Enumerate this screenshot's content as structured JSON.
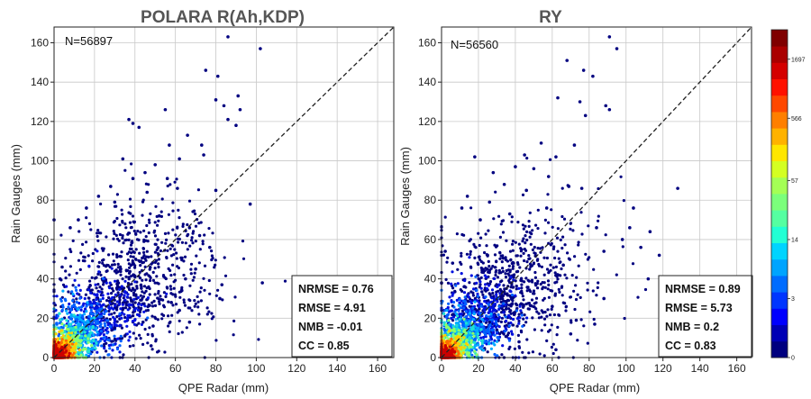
{
  "chart_data": [
    {
      "type": "scatter",
      "title": "POLARA R(Ah,KDP)",
      "xlabel": "QPE Radar (mm)",
      "ylabel": "Rain Gauges (mm)",
      "xlim": [
        0,
        168
      ],
      "ylim": [
        0,
        168
      ],
      "xticks": [
        0,
        20,
        40,
        60,
        80,
        100,
        120,
        140,
        160
      ],
      "yticks": [
        0,
        20,
        40,
        60,
        80,
        100,
        120,
        140,
        160
      ],
      "grid": true,
      "n_label": "N=56897",
      "reference_line": "1:1 dashed",
      "stats": [
        "NRMSE = 0.76",
        "RMSE = 4.91",
        "NMB = -0.01",
        "CC = 0.85"
      ],
      "outliers": [
        [
          86,
          163
        ],
        [
          102,
          157
        ],
        [
          75,
          146
        ],
        [
          81,
          143
        ],
        [
          37,
          121
        ],
        [
          39,
          119
        ],
        [
          55,
          126
        ],
        [
          42,
          117
        ],
        [
          80,
          131
        ],
        [
          84,
          128
        ],
        [
          91,
          133
        ],
        [
          92,
          126
        ],
        [
          86,
          121
        ],
        [
          90,
          118
        ],
        [
          97,
          78
        ],
        [
          103,
          38
        ],
        [
          83,
          37
        ],
        [
          82,
          30
        ],
        [
          70,
          45
        ],
        [
          65,
          40
        ],
        [
          57,
          108
        ],
        [
          62,
          101
        ],
        [
          74,
          103
        ],
        [
          73,
          108
        ],
        [
          66,
          113
        ],
        [
          50,
          98
        ],
        [
          45,
          94
        ],
        [
          39,
          91
        ],
        [
          34,
          101
        ],
        [
          28,
          87
        ],
        [
          22,
          82
        ],
        [
          16,
          76
        ],
        [
          12,
          70
        ],
        [
          0,
          70
        ],
        [
          8,
          66
        ],
        [
          30,
          79
        ],
        [
          58,
          28
        ],
        [
          67,
          18
        ],
        [
          62,
          24
        ],
        [
          49,
          16
        ],
        [
          44,
          18
        ],
        [
          48,
          6
        ],
        [
          35,
          11
        ],
        [
          30,
          15
        ],
        [
          4,
          46
        ],
        [
          3,
          40
        ],
        [
          80,
          85
        ],
        [
          52,
          72
        ],
        [
          46,
          84
        ],
        [
          56,
          91
        ],
        [
          61,
          86
        ],
        [
          67,
          66
        ],
        [
          72,
          62
        ],
        [
          77,
          56
        ]
      ]
    },
    {
      "type": "scatter",
      "title": "RY",
      "xlabel": "QPE Radar (mm)",
      "ylabel": "Rain Gauges (mm)",
      "xlim": [
        0,
        168
      ],
      "ylim": [
        0,
        168
      ],
      "xticks": [
        0,
        20,
        40,
        60,
        80,
        100,
        120,
        140,
        160
      ],
      "yticks": [
        0,
        20,
        40,
        60,
        80,
        100,
        120,
        140,
        160
      ],
      "grid": true,
      "n_label": "N=56560",
      "reference_line": "1:1 dashed",
      "stats": [
        "NRMSE = 0.89",
        "RMSE = 5.73",
        "NMB = 0.2",
        "CC = 0.83"
      ],
      "outliers": [
        [
          91,
          163
        ],
        [
          95,
          157
        ],
        [
          77,
          146
        ],
        [
          82,
          143
        ],
        [
          68,
          151
        ],
        [
          63,
          132
        ],
        [
          75,
          130
        ],
        [
          89,
          128
        ],
        [
          91,
          126
        ],
        [
          78,
          123
        ],
        [
          18,
          102
        ],
        [
          28,
          94
        ],
        [
          40,
          97
        ],
        [
          34,
          88
        ],
        [
          50,
          96
        ],
        [
          58,
          92
        ],
        [
          69,
          87
        ],
        [
          76,
          86
        ],
        [
          128,
          86
        ],
        [
          113,
          64
        ],
        [
          118,
          52
        ],
        [
          112,
          40
        ],
        [
          102,
          66
        ],
        [
          98,
          60
        ],
        [
          88,
          54
        ],
        [
          84,
          66
        ],
        [
          66,
          47
        ],
        [
          83,
          17
        ],
        [
          73,
          19
        ],
        [
          60,
          26
        ],
        [
          55,
          23
        ],
        [
          62,
          4
        ],
        [
          42,
          8
        ],
        [
          30,
          14
        ],
        [
          26,
          18
        ],
        [
          0,
          38
        ],
        [
          2,
          54
        ],
        [
          6,
          48
        ],
        [
          11,
          76
        ],
        [
          14,
          82
        ],
        [
          21,
          70
        ],
        [
          26,
          79
        ],
        [
          45,
          103
        ],
        [
          54,
          109
        ],
        [
          57,
          76
        ],
        [
          62,
          102
        ],
        [
          72,
          108
        ],
        [
          46,
          85
        ],
        [
          37,
          73
        ],
        [
          104,
          76
        ],
        [
          108,
          56
        ],
        [
          70,
          12
        ],
        [
          88,
          30
        ]
      ]
    }
  ],
  "colorbar": {
    "label_ticks": [
      "0",
      "3",
      "14",
      "57",
      "566",
      "1697"
    ],
    "colors": [
      "#00007f",
      "#0000b5",
      "#0000ff",
      "#0035ff",
      "#006cff",
      "#00a4ff",
      "#00d4ff",
      "#22ffd4",
      "#55ffa1",
      "#7bff7b",
      "#a4ff55",
      "#d4ff22",
      "#ffe600",
      "#ffb200",
      "#ff7f00",
      "#ff4800",
      "#ff1100",
      "#d40000",
      "#aa0000",
      "#7f0000"
    ]
  },
  "colors": {
    "point": "#000080",
    "grid": "#c8c8c8",
    "title": "#555555"
  }
}
